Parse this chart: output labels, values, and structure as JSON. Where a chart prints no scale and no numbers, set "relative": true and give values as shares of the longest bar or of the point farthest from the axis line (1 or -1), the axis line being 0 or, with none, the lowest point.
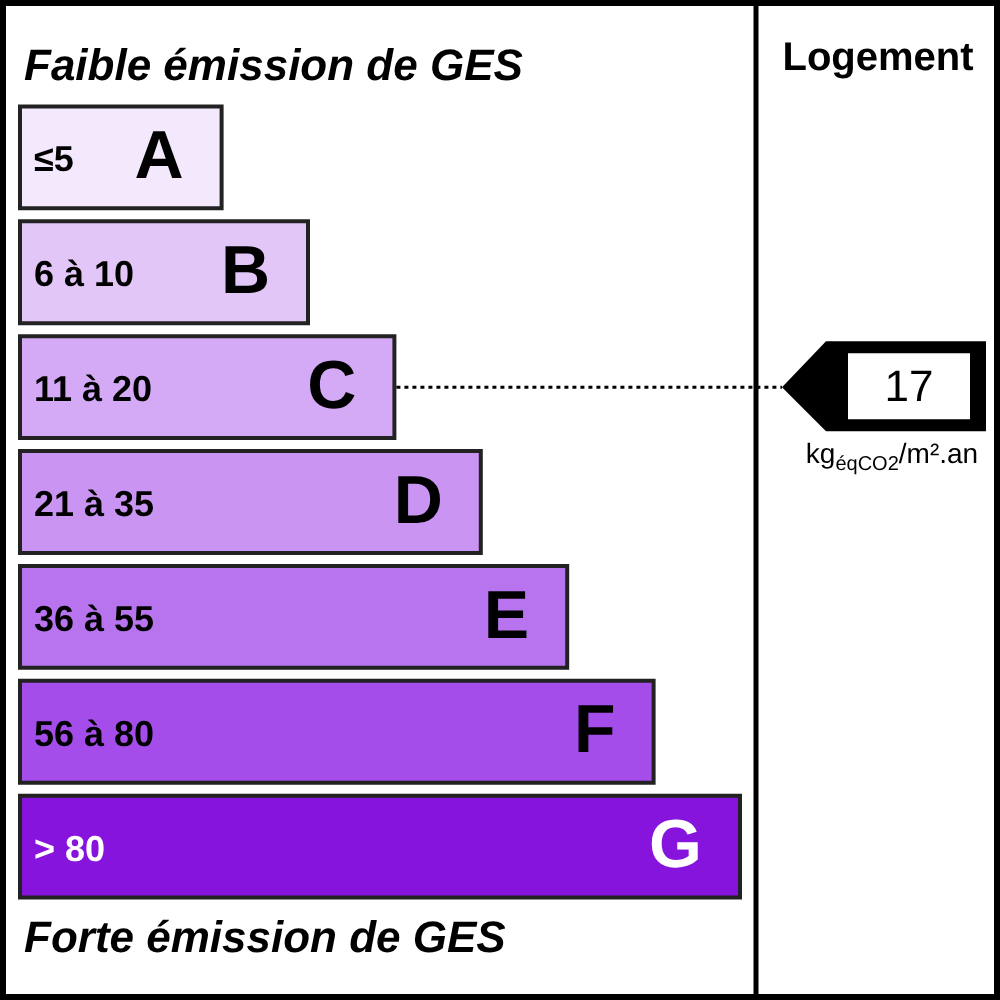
{
  "chart_data": {
    "type": "bar",
    "orientation": "horizontal",
    "relative": true,
    "title": "Faible émission de GES",
    "categories": [
      "A",
      "B",
      "C",
      "D",
      "E",
      "F",
      "G"
    ],
    "values": [
      0.28,
      0.4,
      0.52,
      0.64,
      0.76,
      0.88,
      1
    ],
    "colors": [
      "#f4e9fc",
      "#e2c6f8",
      "#d4a9f5",
      "#c994f2",
      "#b874ee",
      "#a54deb",
      "#8614dc"
    ],
    "ref_lines": [
      {
        "axis": "y",
        "value": "C",
        "label": "17",
        "color": "#000000",
        "line_style": "dotted"
      }
    ],
    "annotations": [
      "≤5",
      "6 à 10",
      "11 à 20",
      "21 à 35",
      "36 à 55",
      "56 à 80",
      "> 80",
      "Forte émission de GES",
      "Logement",
      "kg$_{éqCO2}$/m².an"
    ]
  }
}
